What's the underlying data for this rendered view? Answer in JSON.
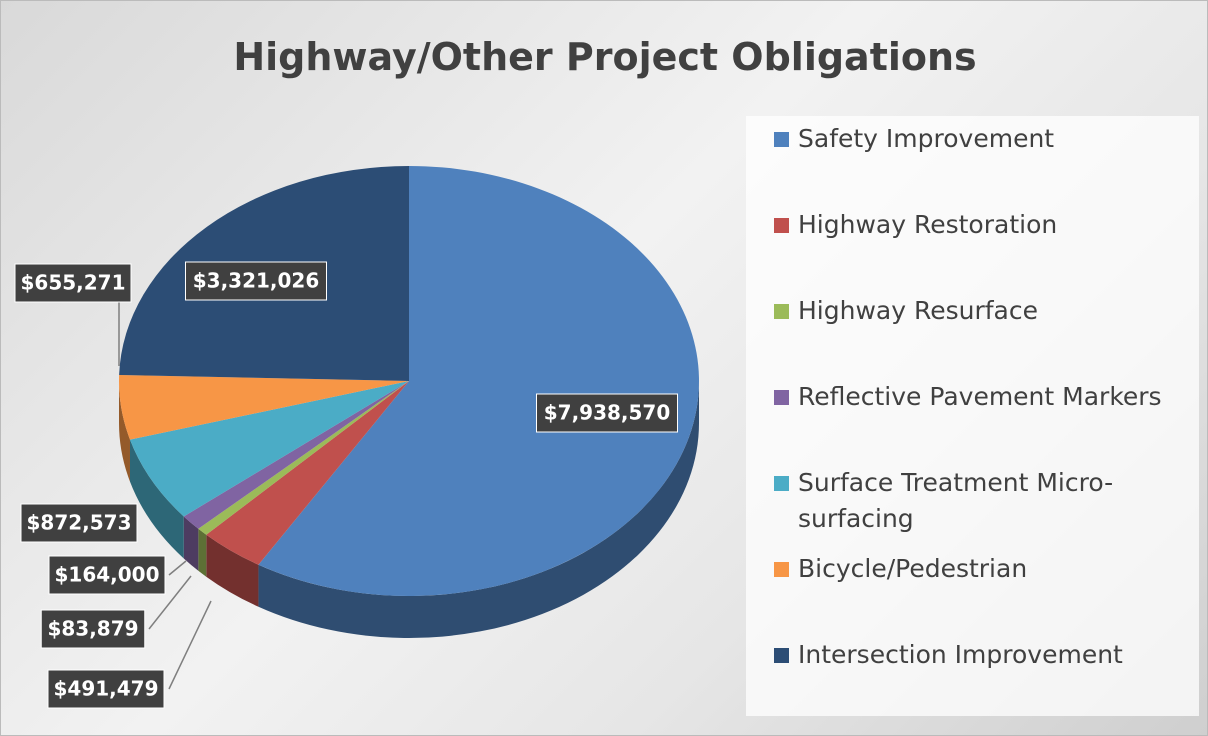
{
  "chart_data": {
    "type": "pie",
    "title": "Highway/Other Project Obligations",
    "categories": [
      "Safety Improvement",
      "Highway Restoration",
      "Highway Resurface",
      "Reflective Pavement Markers",
      "Surface Treatment  Micro-surfacing",
      "Bicycle/Pedestrian",
      "Intersection Improvement"
    ],
    "values": [
      7938570,
      491479,
      83879,
      164000,
      872573,
      655271,
      3321026
    ],
    "value_labels": [
      "$7,938,570",
      "$491,479",
      "$83,879",
      "$164,000",
      "$872,573",
      "$655,271",
      "$3,321,026"
    ],
    "colors": [
      "#4f81bd",
      "#c0504d",
      "#9bbb59",
      "#8064a2",
      "#4bacc6",
      "#f79646",
      "#2c4d75"
    ],
    "legend": "right"
  }
}
